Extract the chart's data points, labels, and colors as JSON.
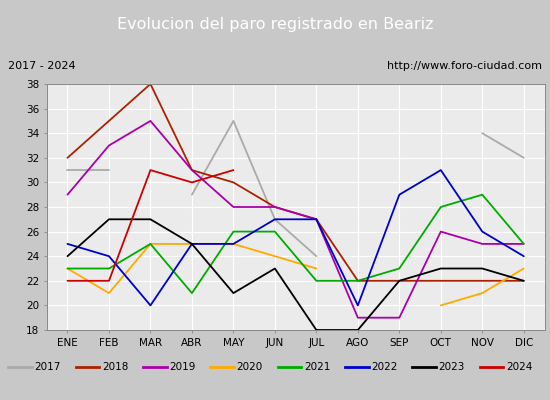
{
  "title": "Evolucion del paro registrado en Beariz",
  "subtitle_left": "2017 - 2024",
  "subtitle_right": "http://www.foro-ciudad.com",
  "months": [
    "ENE",
    "FEB",
    "MAR",
    "ABR",
    "MAY",
    "JUN",
    "JUL",
    "AGO",
    "SEP",
    "OCT",
    "NOV",
    "DIC"
  ],
  "ylim": [
    18,
    38
  ],
  "yticks": [
    18,
    20,
    22,
    24,
    26,
    28,
    30,
    32,
    34,
    36,
    38
  ],
  "series": {
    "2017": {
      "color": "#aaaaaa",
      "values": [
        31,
        31,
        null,
        29,
        35,
        27,
        24,
        null,
        null,
        null,
        34,
        32
      ]
    },
    "2018": {
      "color": "#aa2200",
      "values": [
        32,
        35,
        38,
        31,
        30,
        28,
        27,
        22,
        22,
        22,
        22,
        22
      ]
    },
    "2019": {
      "color": "#aa00aa",
      "values": [
        29,
        33,
        35,
        31,
        28,
        28,
        27,
        19,
        19,
        26,
        25,
        25
      ]
    },
    "2020": {
      "color": "#ffaa00",
      "values": [
        23,
        21,
        25,
        25,
        25,
        24,
        23,
        null,
        null,
        20,
        21,
        23
      ]
    },
    "2021": {
      "color": "#00aa00",
      "values": [
        23,
        23,
        25,
        21,
        26,
        26,
        22,
        22,
        23,
        28,
        29,
        25
      ]
    },
    "2022": {
      "color": "#0000cc",
      "values": [
        25,
        24,
        20,
        25,
        25,
        27,
        27,
        20,
        29,
        31,
        26,
        24
      ]
    },
    "2023": {
      "color": "#000000",
      "values": [
        24,
        27,
        27,
        25,
        21,
        23,
        18,
        18,
        22,
        23,
        23,
        22
      ]
    },
    "2024": {
      "color": "#cc0000",
      "values": [
        22,
        22,
        31,
        30,
        31,
        null,
        null,
        null,
        null,
        null,
        null,
        null
      ]
    }
  },
  "title_bg_color": "#4472c4",
  "title_text_color": "#ffffff",
  "subtitle_bg_color": "#e0e0e0",
  "plot_bg_color": "#ebebeb",
  "grid_color": "#ffffff",
  "legend_bg_color": "#f0f0f0"
}
